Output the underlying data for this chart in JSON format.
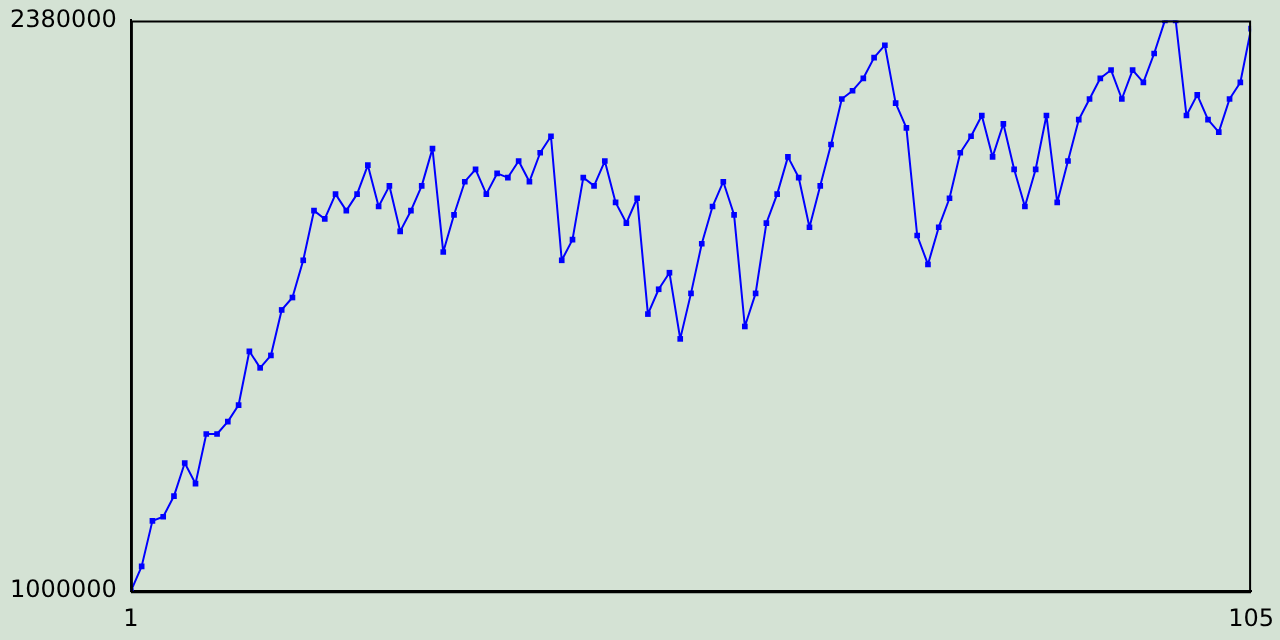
{
  "chart_data": {
    "type": "line",
    "marker": "square",
    "grid": false,
    "legend": false,
    "x": [
      1,
      2,
      3,
      4,
      5,
      6,
      7,
      8,
      9,
      10,
      11,
      12,
      13,
      14,
      15,
      16,
      17,
      18,
      19,
      20,
      21,
      22,
      23,
      24,
      25,
      26,
      27,
      28,
      29,
      30,
      31,
      32,
      33,
      34,
      35,
      36,
      37,
      38,
      39,
      40,
      41,
      42,
      43,
      44,
      45,
      46,
      47,
      48,
      49,
      50,
      51,
      52,
      53,
      54,
      55,
      56,
      57,
      58,
      59,
      60,
      61,
      62,
      63,
      64,
      65,
      66,
      67,
      68,
      69,
      70,
      71,
      72,
      73,
      74,
      75,
      76,
      77,
      78,
      79,
      80,
      81,
      82,
      83,
      84,
      85,
      86,
      87,
      88,
      89,
      90,
      91,
      92,
      93,
      94,
      95,
      96,
      97,
      98,
      99,
      100,
      101,
      102,
      103,
      104,
      105
    ],
    "series": [
      {
        "color": "#0000ff",
        "values": [
          1000000,
          1060000,
          1170000,
          1180000,
          1230000,
          1310000,
          1260000,
          1380000,
          1380000,
          1410000,
          1450000,
          1580000,
          1540000,
          1570000,
          1680000,
          1710000,
          1800000,
          1920000,
          1900000,
          1960000,
          1920000,
          1960000,
          2030000,
          1930000,
          1980000,
          1870000,
          1920000,
          1980000,
          2070000,
          1820000,
          1910000,
          1990000,
          2020000,
          1960000,
          2010000,
          2000000,
          2040000,
          1990000,
          2060000,
          2100000,
          1800000,
          1850000,
          2000000,
          1980000,
          2040000,
          1940000,
          1890000,
          1950000,
          1670000,
          1730000,
          1770000,
          1610000,
          1720000,
          1840000,
          1930000,
          1990000,
          1910000,
          1640000,
          1720000,
          1890000,
          1960000,
          2050000,
          2000000,
          1880000,
          1980000,
          2080000,
          2190000,
          2210000,
          2240000,
          2290000,
          2320000,
          2180000,
          2120000,
          1860000,
          1790000,
          1880000,
          1950000,
          2060000,
          2100000,
          2150000,
          2050000,
          2130000,
          2020000,
          1930000,
          2020000,
          2150000,
          1940000,
          2040000,
          2140000,
          2190000,
          2240000,
          2260000,
          2190000,
          2260000,
          2230000,
          2300000,
          2380000,
          2380000,
          2150000,
          2200000,
          2140000,
          2110000,
          2190000,
          2230000,
          2360000
        ]
      }
    ],
    "xlim": [
      1,
      105
    ],
    "xticks": [
      1,
      105
    ],
    "ylim": [
      1000000,
      2380000
    ],
    "yticks": [
      1000000,
      2380000
    ]
  }
}
